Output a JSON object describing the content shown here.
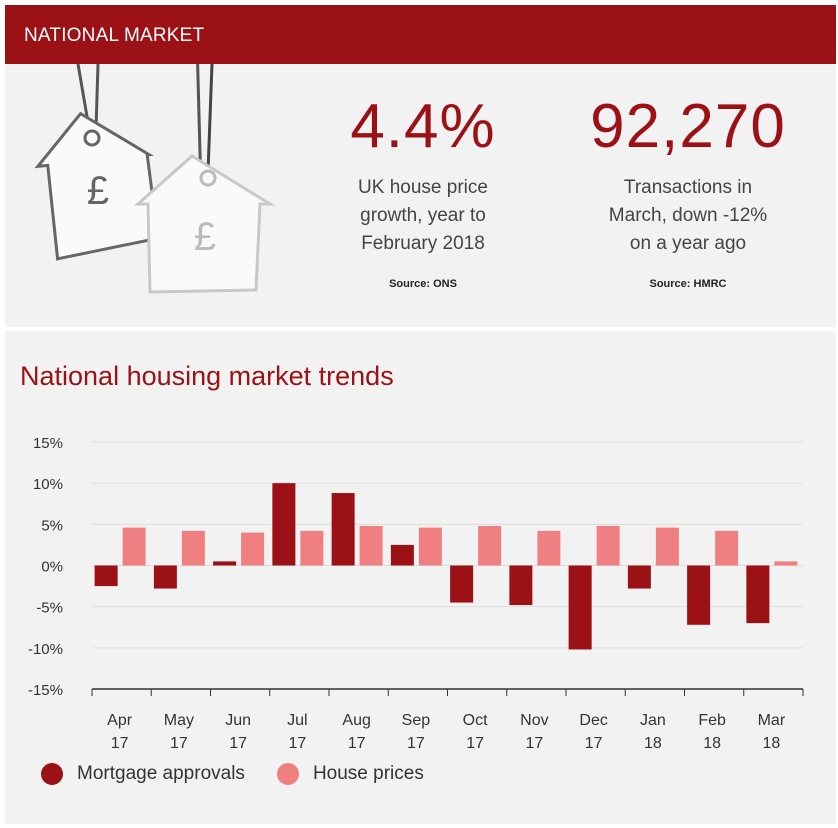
{
  "header": {
    "title": "NATIONAL MARKET"
  },
  "stats": [
    {
      "value": "4.4%",
      "description_lines": [
        "UK house price",
        "growth, year to",
        "February 2018"
      ],
      "source": "Source: ONS"
    },
    {
      "value": "92,270",
      "description_lines": [
        "Transactions in",
        "March, down -12%",
        "on a year ago"
      ],
      "source": "Source: HMRC"
    }
  ],
  "illustration": {
    "icon": "price-tag-house-icon",
    "symbol": "£"
  },
  "colors": {
    "brand": "#9b1116",
    "mortgage": "#9b1116",
    "house": "#ef7f80",
    "axis": "#333333",
    "grid": "#dddddd"
  },
  "chart_data": {
    "type": "bar",
    "title": "National housing market trends",
    "categories": [
      "Apr 17",
      "May 17",
      "Jun 17",
      "Jul 17",
      "Aug 17",
      "Sep 17",
      "Oct 17",
      "Nov 17",
      "Dec 17",
      "Jan 18",
      "Feb 18",
      "Mar 18"
    ],
    "category_lines": [
      [
        "Apr",
        "17"
      ],
      [
        "May",
        "17"
      ],
      [
        "Jun",
        "17"
      ],
      [
        "Jul",
        "17"
      ],
      [
        "Aug",
        "17"
      ],
      [
        "Sep",
        "17"
      ],
      [
        "Oct",
        "17"
      ],
      [
        "Nov",
        "17"
      ],
      [
        "Dec",
        "17"
      ],
      [
        "Jan",
        "18"
      ],
      [
        "Feb",
        "18"
      ],
      [
        "Mar",
        "18"
      ]
    ],
    "series": [
      {
        "name": "Mortgage approvals",
        "color": "#9b1116",
        "values": [
          -2.5,
          -2.8,
          0.5,
          10.0,
          8.8,
          2.5,
          -4.5,
          -4.8,
          -10.2,
          -2.8,
          -7.2,
          -7.0
        ]
      },
      {
        "name": "House prices",
        "color": "#ef7f80",
        "values": [
          4.6,
          4.2,
          4.0,
          4.2,
          4.8,
          4.6,
          4.8,
          4.2,
          4.8,
          4.6,
          4.2,
          0.5
        ]
      }
    ],
    "ylim": [
      -15,
      15
    ],
    "yticks": [
      15,
      10,
      5,
      0,
      -5,
      -10,
      -15
    ],
    "ytick_labels": [
      "15%",
      "10%",
      "5%",
      "0%",
      "-5%",
      "-10%",
      "-15%"
    ],
    "grid": true,
    "legend_position": "bottom-left"
  }
}
